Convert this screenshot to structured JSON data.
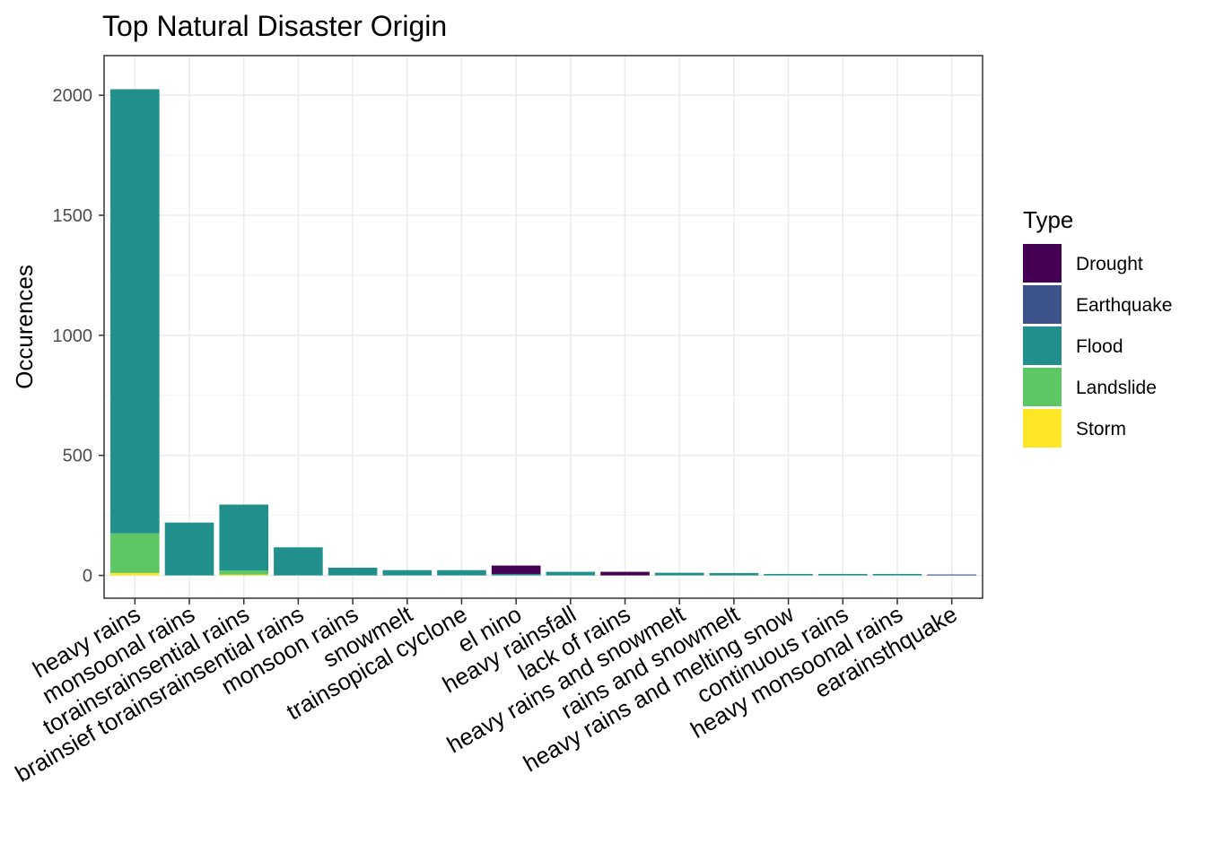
{
  "chart_data": {
    "type": "bar",
    "stacked": true,
    "title": "Top Natural Disaster Origin",
    "xlabel": "",
    "ylabel": "Occurences",
    "ylim": [
      -95,
      2165
    ],
    "yticks": [
      0,
      500,
      1000,
      1500,
      2000
    ],
    "grid": true,
    "legend_title": "Type",
    "legend_position": "right",
    "categories": [
      "heavy rains",
      "monsoonal rains",
      "torainsrainsential rains",
      "brainsief torainsrainsential rains",
      "monsoon rains",
      "snowmelt",
      "trainsopical cyclone",
      "el nino",
      "heavy rainsfall",
      "lack of rains",
      "heavy rains and snowmelt",
      "rains and snowmelt",
      "heavy rains and melting snow",
      "continuous rains",
      "heavy monsoonal rains",
      "earainsthquake"
    ],
    "series": [
      {
        "name": "Storm",
        "color": "#FDE725",
        "values": [
          10,
          0,
          3,
          0,
          0,
          0,
          0,
          0,
          0,
          0,
          0,
          0,
          0,
          0,
          0,
          0
        ]
      },
      {
        "name": "Landslide",
        "color": "#5DC863",
        "values": [
          165,
          0,
          17,
          0,
          0,
          0,
          0,
          0,
          0,
          0,
          0,
          0,
          0,
          0,
          0,
          0
        ]
      },
      {
        "name": "Flood",
        "color": "#21908C",
        "values": [
          1850,
          220,
          275,
          117,
          32,
          22,
          22,
          6,
          15,
          0,
          11,
          10,
          6,
          6,
          6,
          0
        ]
      },
      {
        "name": "Earthquake",
        "color": "#3B528B",
        "values": [
          0,
          0,
          0,
          0,
          0,
          0,
          0,
          0,
          0,
          0,
          0,
          0,
          0,
          0,
          0,
          4
        ]
      },
      {
        "name": "Drought",
        "color": "#440154",
        "values": [
          0,
          0,
          0,
          0,
          0,
          0,
          0,
          35,
          0,
          15,
          0,
          0,
          0,
          0,
          0,
          0
        ]
      }
    ],
    "legend_order": [
      "Drought",
      "Earthquake",
      "Flood",
      "Landslide",
      "Storm"
    ]
  }
}
